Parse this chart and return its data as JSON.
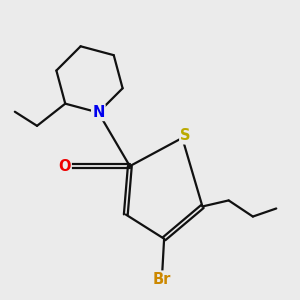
{
  "background_color": "#ebebeb",
  "atom_colors": {
    "N": "#0000ee",
    "O": "#ee0000",
    "S": "#bbaa00",
    "Br": "#cc8800",
    "C": "#111111"
  },
  "bond_color": "#111111",
  "bond_width": 1.6,
  "font_size_atoms": 10.5
}
